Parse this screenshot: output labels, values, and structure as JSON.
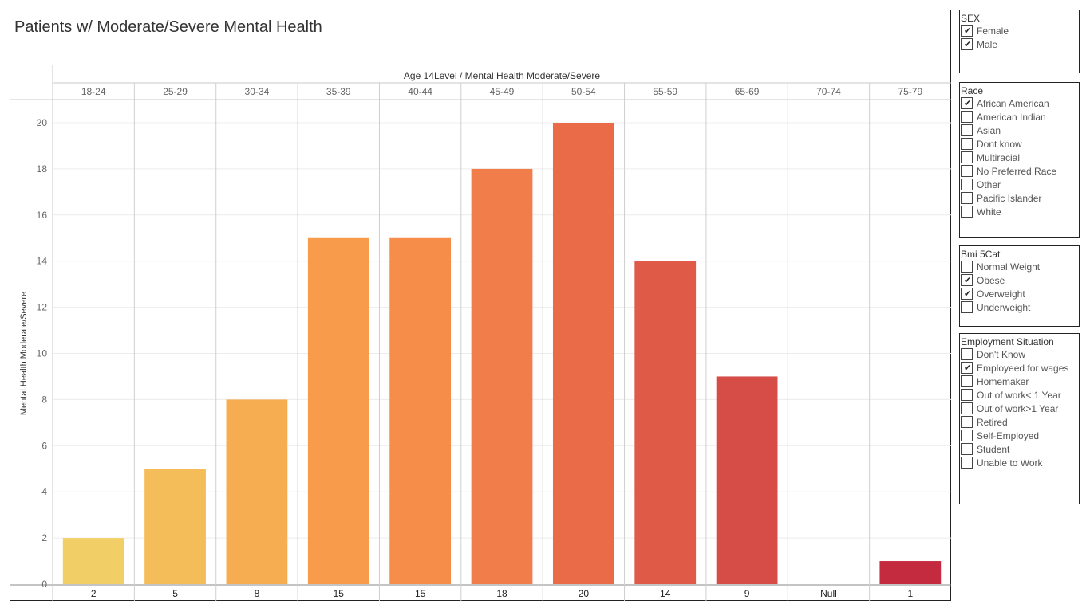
{
  "title": "Patients w/ Moderate/Severe Mental Health",
  "chart_data": {
    "type": "bar",
    "header_label": "Age 14Level  /  Mental Health Moderate/Severe",
    "ylabel": "Mental Health Moderate/Severe",
    "ylim": [
      0,
      21
    ],
    "yticks": [
      0,
      2,
      4,
      6,
      8,
      10,
      12,
      14,
      16,
      18,
      20
    ],
    "grid": true,
    "categories": [
      "18-24",
      "25-29",
      "30-34",
      "35-39",
      "40-44",
      "45-49",
      "50-54",
      "55-59",
      "65-69",
      "70-74",
      "75-79"
    ],
    "values": [
      2,
      5,
      8,
      15,
      15,
      18,
      20,
      14,
      9,
      null,
      1
    ],
    "value_labels": [
      "2",
      "5",
      "8",
      "15",
      "15",
      "18",
      "20",
      "14",
      "9",
      "Null",
      "1"
    ],
    "colors": [
      "#f2cf66",
      "#f4bd5a",
      "#f6ad52",
      "#f89c4b",
      "#f68e4a",
      "#f17d4b",
      "#ea6b48",
      "#e05a48",
      "#d64c46",
      "#d64c46",
      "#c52b3f"
    ]
  },
  "filters": [
    {
      "title": "SEX",
      "items": [
        {
          "label": "Female",
          "checked": true
        },
        {
          "label": "Male",
          "checked": true
        }
      ]
    },
    {
      "title": "Race",
      "items": [
        {
          "label": "African American",
          "checked": true
        },
        {
          "label": "American Indian",
          "checked": false
        },
        {
          "label": "Asian",
          "checked": false
        },
        {
          "label": "Dont know",
          "checked": false
        },
        {
          "label": "Multiracial",
          "checked": false
        },
        {
          "label": "No Preferred Race",
          "checked": false
        },
        {
          "label": "Other",
          "checked": false
        },
        {
          "label": "Pacific Islander",
          "checked": false
        },
        {
          "label": "White",
          "checked": false
        }
      ]
    },
    {
      "title": "Bmi 5Cat",
      "items": [
        {
          "label": "Normal Weight",
          "checked": false
        },
        {
          "label": "Obese",
          "checked": true
        },
        {
          "label": "Overweight",
          "checked": true
        },
        {
          "label": "Underweight",
          "checked": false
        }
      ]
    },
    {
      "title": "Employment Situation",
      "items": [
        {
          "label": "Don't Know",
          "checked": false
        },
        {
          "label": "Employeed for wages",
          "checked": true
        },
        {
          "label": "Homemaker",
          "checked": false
        },
        {
          "label": "Out of work< 1 Year",
          "checked": false
        },
        {
          "label": "Out of work>1 Year",
          "checked": false
        },
        {
          "label": "Retired",
          "checked": false
        },
        {
          "label": "Self-Employed",
          "checked": false
        },
        {
          "label": "Student",
          "checked": false
        },
        {
          "label": "Unable to Work",
          "checked": false
        }
      ]
    }
  ]
}
